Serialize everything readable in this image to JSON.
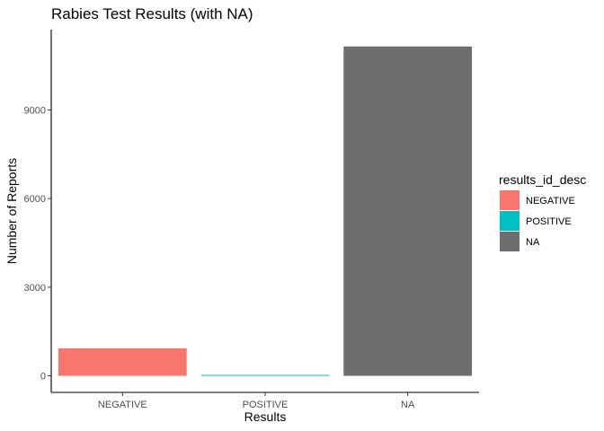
{
  "chart_data": {
    "type": "bar",
    "title": "Rabies Test Results (with NA)",
    "xlabel": "Results",
    "ylabel": "Number of Reports",
    "categories": [
      "NEGATIVE",
      "POSITIVE",
      "NA"
    ],
    "values": [
      930,
      15,
      11150
    ],
    "colors": [
      "#F8766D",
      "#00BFC4",
      "#6E6E6E"
    ],
    "yticks": [
      0,
      3000,
      6000,
      9000
    ],
    "ylim": [
      -560,
      11720
    ],
    "grid": false,
    "legend": {
      "title": "results_id_desc",
      "placement": "right",
      "entries": [
        "NEGATIVE",
        "POSITIVE",
        "NA"
      ]
    }
  }
}
